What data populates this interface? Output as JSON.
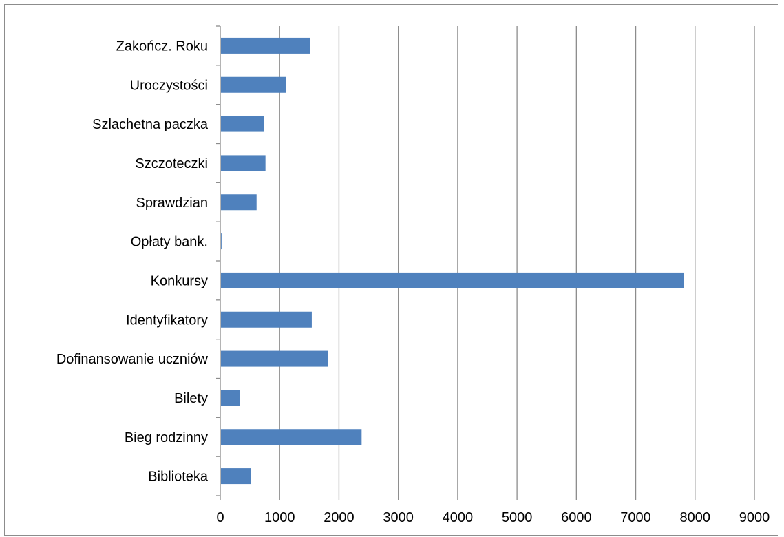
{
  "chart_data": {
    "type": "bar",
    "orientation": "horizontal",
    "categories": [
      "Zakończ. Roku",
      "Uroczystości",
      "Szlachetna paczka",
      "Szczoteczki",
      "Sprawdzian",
      "Opłaty bank.",
      "Konkursy",
      "Identyfikatory",
      "Dofinansowanie uczniów",
      "Bilety",
      "Bieg rodzinny",
      "Biblioteka"
    ],
    "values": [
      1500,
      1100,
      720,
      750,
      600,
      10,
      7800,
      1530,
      1800,
      320,
      2370,
      500
    ],
    "xlim": [
      0,
      9000
    ],
    "x_ticks": [
      "0",
      "1000",
      "2000",
      "3000",
      "4000",
      "5000",
      "6000",
      "7000",
      "8000",
      "9000"
    ],
    "grid": "vertical",
    "legend": "none",
    "colors": {
      "bar": "#4f81bd",
      "grid": "#8c8c8c",
      "axis": "#8c8c8c"
    }
  }
}
